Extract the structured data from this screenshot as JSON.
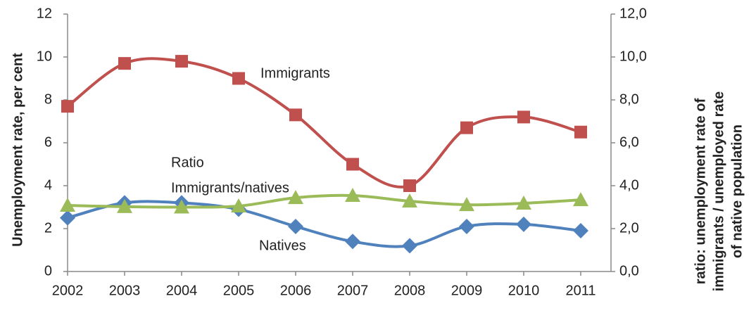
{
  "chart_data": {
    "type": "line",
    "categories": [
      "2002",
      "2003",
      "2004",
      "2005",
      "2006",
      "2007",
      "2008",
      "2009",
      "2010",
      "2011"
    ],
    "ylabel": "Unemployment rate, per cent",
    "y2label": [
      "ratio: unemployment rate of",
      "immigrants / unemployed rate",
      "of native population"
    ],
    "ylim": [
      0,
      12
    ],
    "yticks": [
      0,
      2,
      4,
      6,
      8,
      10,
      12
    ],
    "y2lim": [
      0,
      12
    ],
    "y2ticks": [
      {
        "value": 0,
        "label": "0,0"
      },
      {
        "value": 2,
        "label": "2,0"
      },
      {
        "value": 4,
        "label": "4,0"
      },
      {
        "value": 6,
        "label": "6,0"
      },
      {
        "value": 8,
        "label": "8,0"
      },
      {
        "value": 10,
        "label": "10,0"
      },
      {
        "value": 12,
        "label": "12,0"
      }
    ],
    "smooth": true,
    "series": [
      {
        "name": "Immigrants",
        "color": "#c0504d",
        "marker": "square",
        "values": [
          7.7,
          9.7,
          9.8,
          9.0,
          7.3,
          5.0,
          4.0,
          6.7,
          7.2,
          6.5
        ]
      },
      {
        "name": "Natives",
        "color": "#4f81bd",
        "marker": "diamond",
        "values": [
          2.5,
          3.2,
          3.2,
          2.9,
          2.1,
          1.4,
          1.2,
          2.1,
          2.2,
          1.9
        ]
      },
      {
        "name": "Ratio Immigrants/natives",
        "color": "#9bbb59",
        "marker": "triangle",
        "axis": "y2",
        "values": [
          3.08,
          3.02,
          3.0,
          3.05,
          3.44,
          3.54,
          3.28,
          3.11,
          3.18,
          3.34
        ]
      }
    ],
    "annotations": [
      "Immigrants",
      "Ratio",
      "Immigrants/natives",
      "Natives"
    ]
  }
}
